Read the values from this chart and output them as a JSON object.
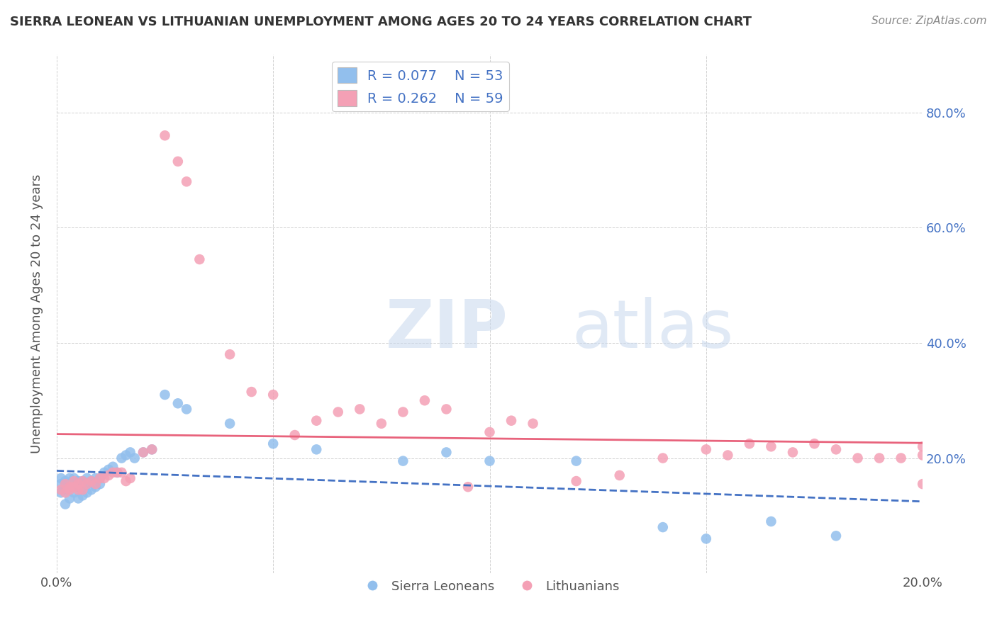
{
  "title": "SIERRA LEONEAN VS LITHUANIAN UNEMPLOYMENT AMONG AGES 20 TO 24 YEARS CORRELATION CHART",
  "source": "Source: ZipAtlas.com",
  "ylabel": "Unemployment Among Ages 20 to 24 years",
  "xlim": [
    0.0,
    0.2
  ],
  "ylim": [
    0.0,
    0.9
  ],
  "sl_color": "#92BFED",
  "lit_color": "#F4A0B5",
  "sl_line_color": "#4472C4",
  "lit_line_color": "#E8637C",
  "sl_R": 0.077,
  "sl_N": 53,
  "lit_R": 0.262,
  "lit_N": 59,
  "legend_text_color": "#4472C4",
  "background_color": "#ffffff",
  "sl_x": [
    0.001,
    0.001,
    0.001,
    0.002,
    0.002,
    0.002,
    0.002,
    0.003,
    0.003,
    0.003,
    0.003,
    0.004,
    0.004,
    0.004,
    0.005,
    0.005,
    0.005,
    0.006,
    0.006,
    0.006,
    0.007,
    0.007,
    0.007,
    0.008,
    0.008,
    0.009,
    0.009,
    0.01,
    0.01,
    0.011,
    0.012,
    0.013,
    0.014,
    0.015,
    0.016,
    0.017,
    0.018,
    0.02,
    0.022,
    0.025,
    0.028,
    0.03,
    0.04,
    0.05,
    0.06,
    0.08,
    0.09,
    0.1,
    0.12,
    0.14,
    0.15,
    0.165,
    0.18
  ],
  "sl_y": [
    0.14,
    0.155,
    0.165,
    0.12,
    0.145,
    0.155,
    0.16,
    0.13,
    0.15,
    0.155,
    0.165,
    0.14,
    0.155,
    0.165,
    0.13,
    0.15,
    0.16,
    0.135,
    0.15,
    0.16,
    0.14,
    0.155,
    0.165,
    0.145,
    0.16,
    0.15,
    0.165,
    0.155,
    0.165,
    0.175,
    0.18,
    0.185,
    0.175,
    0.2,
    0.205,
    0.21,
    0.2,
    0.21,
    0.215,
    0.31,
    0.295,
    0.285,
    0.26,
    0.225,
    0.215,
    0.195,
    0.21,
    0.195,
    0.195,
    0.08,
    0.06,
    0.09,
    0.065
  ],
  "lit_x": [
    0.001,
    0.002,
    0.002,
    0.003,
    0.003,
    0.004,
    0.004,
    0.005,
    0.005,
    0.006,
    0.006,
    0.007,
    0.008,
    0.009,
    0.01,
    0.011,
    0.012,
    0.013,
    0.014,
    0.015,
    0.016,
    0.017,
    0.02,
    0.022,
    0.025,
    0.028,
    0.03,
    0.033,
    0.04,
    0.045,
    0.05,
    0.055,
    0.06,
    0.065,
    0.07,
    0.075,
    0.08,
    0.085,
    0.09,
    0.095,
    0.1,
    0.105,
    0.11,
    0.12,
    0.13,
    0.14,
    0.15,
    0.155,
    0.16,
    0.165,
    0.17,
    0.175,
    0.18,
    0.185,
    0.19,
    0.195,
    0.2,
    0.2,
    0.2
  ],
  "lit_y": [
    0.145,
    0.14,
    0.155,
    0.145,
    0.15,
    0.15,
    0.16,
    0.145,
    0.155,
    0.145,
    0.16,
    0.155,
    0.16,
    0.155,
    0.165,
    0.165,
    0.17,
    0.175,
    0.175,
    0.175,
    0.16,
    0.165,
    0.21,
    0.215,
    0.76,
    0.715,
    0.68,
    0.545,
    0.38,
    0.315,
    0.31,
    0.24,
    0.265,
    0.28,
    0.285,
    0.26,
    0.28,
    0.3,
    0.285,
    0.15,
    0.245,
    0.265,
    0.26,
    0.16,
    0.17,
    0.2,
    0.215,
    0.205,
    0.225,
    0.22,
    0.21,
    0.225,
    0.215,
    0.2,
    0.2,
    0.2,
    0.155,
    0.22,
    0.205
  ]
}
